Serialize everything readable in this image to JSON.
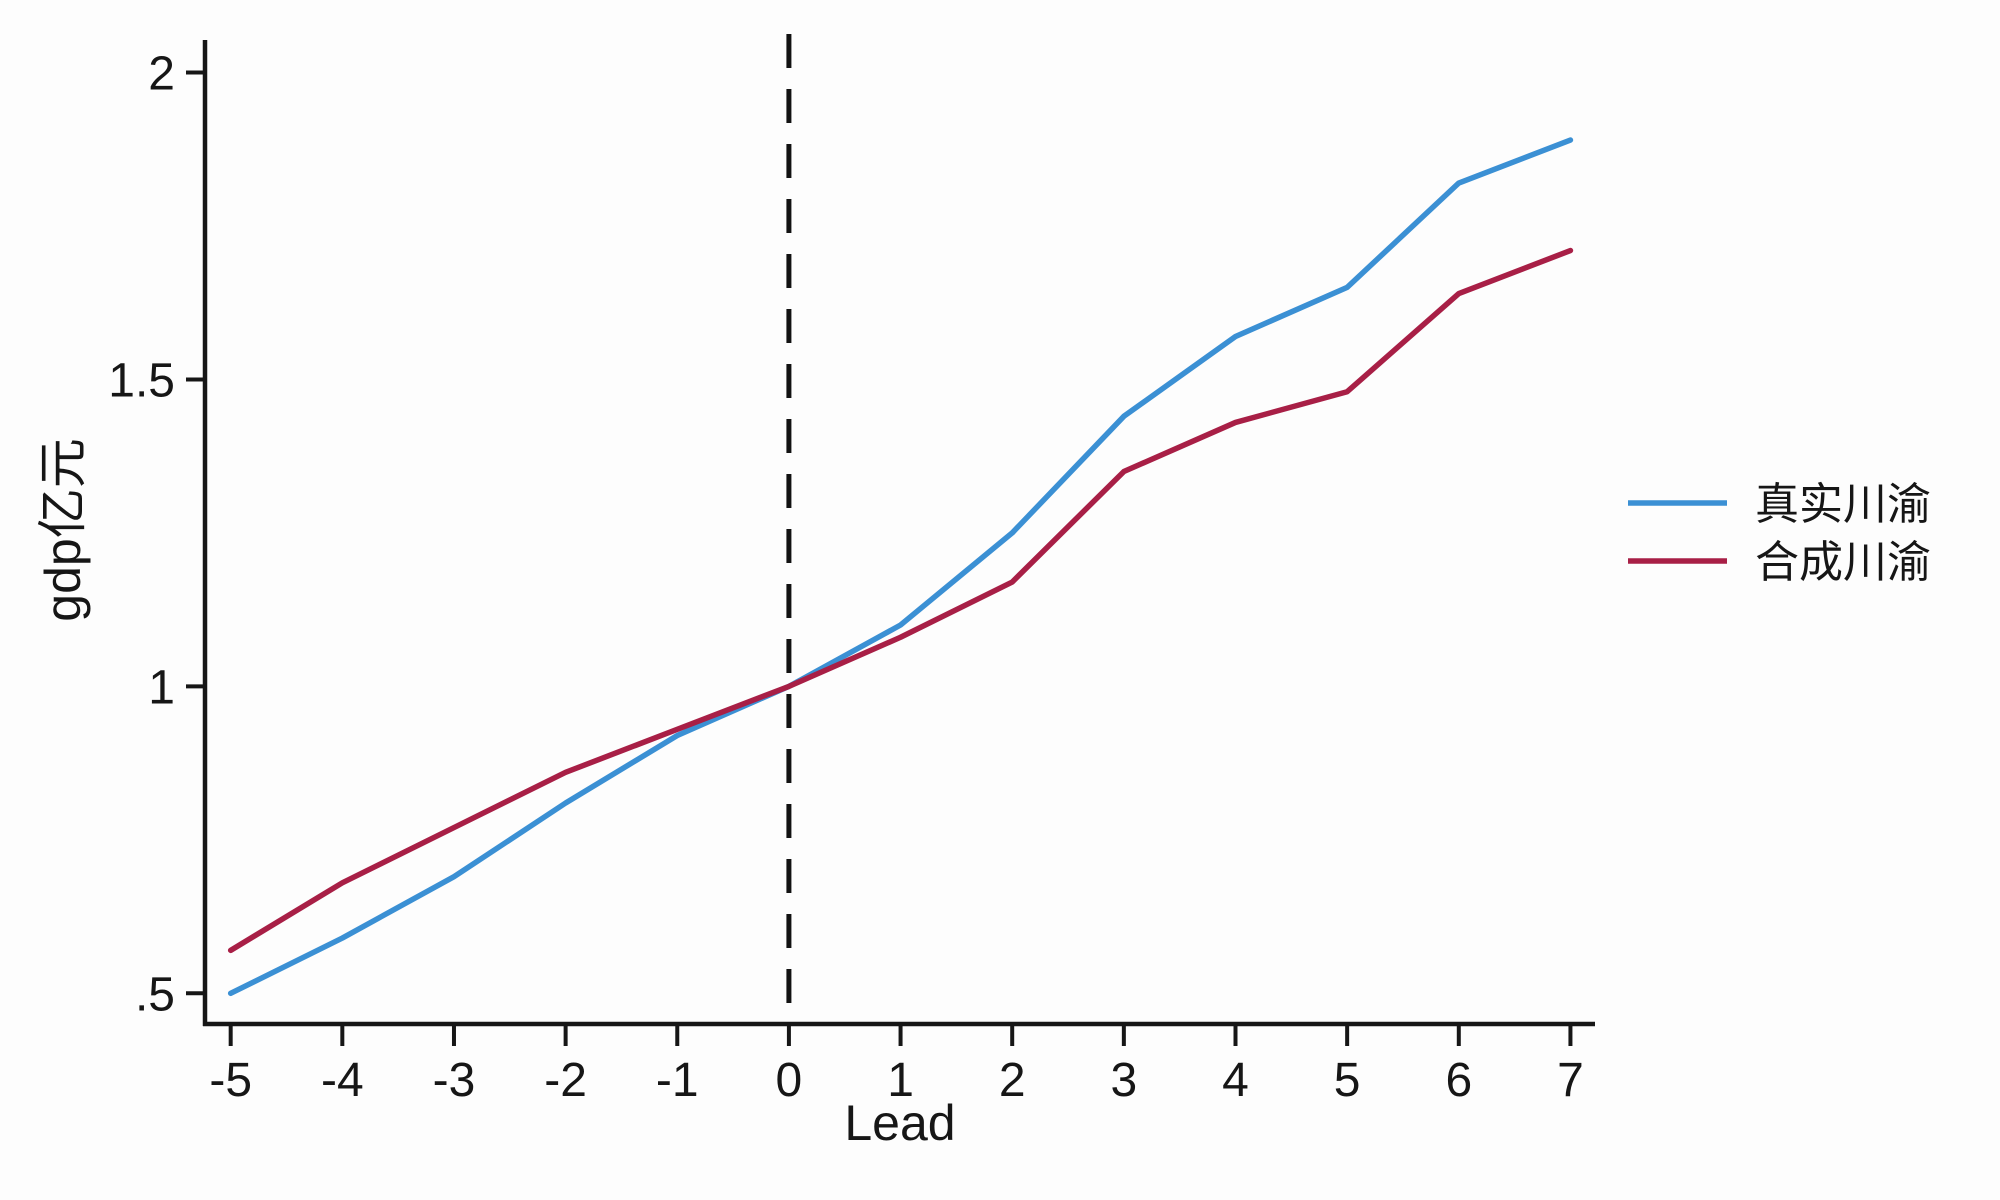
{
  "chart_data": {
    "type": "line",
    "title": "",
    "xlabel": "Lead",
    "ylabel": "gdp亿元",
    "x": [
      -5,
      -4,
      -3,
      -2,
      -1,
      0,
      1,
      2,
      3,
      4,
      5,
      6,
      7
    ],
    "series": [
      {
        "name": "真实川渝",
        "color": "#3b90d4",
        "values": [
          0.5,
          0.59,
          0.69,
          0.81,
          0.92,
          1.0,
          1.1,
          1.25,
          1.44,
          1.57,
          1.65,
          1.82,
          1.89
        ]
      },
      {
        "name": "合成川渝",
        "color": "#a81f46",
        "values": [
          0.57,
          0.68,
          0.77,
          0.86,
          0.93,
          1.0,
          1.08,
          1.17,
          1.35,
          1.43,
          1.48,
          1.64,
          1.71
        ]
      }
    ],
    "xlim": [
      -5.23,
      7.22
    ],
    "ylim": [
      0.45,
      2.053
    ],
    "x_ticks": [
      {
        "value": -5,
        "label": "-5"
      },
      {
        "value": -4,
        "label": "-4"
      },
      {
        "value": -3,
        "label": "-3"
      },
      {
        "value": -2,
        "label": "-2"
      },
      {
        "value": -1,
        "label": "-1"
      },
      {
        "value": 0,
        "label": "0"
      },
      {
        "value": 1,
        "label": "1"
      },
      {
        "value": 2,
        "label": "2"
      },
      {
        "value": 3,
        "label": "3"
      },
      {
        "value": 4,
        "label": "4"
      },
      {
        "value": 5,
        "label": "5"
      },
      {
        "value": 6,
        "label": "6"
      },
      {
        "value": 7,
        "label": "7"
      }
    ],
    "y_ticks": [
      {
        "value": 0.5,
        "label": ".5"
      },
      {
        "value": 1.0,
        "label": "1"
      },
      {
        "value": 1.5,
        "label": "1.5"
      },
      {
        "value": 2.0,
        "label": "2"
      }
    ],
    "reference_line": {
      "x": 0,
      "style": "dashed",
      "color": "#121212"
    },
    "grid": "off",
    "legend_position": "right-middle",
    "axis_color": "#161616",
    "background_color": "#fdfdfd"
  }
}
